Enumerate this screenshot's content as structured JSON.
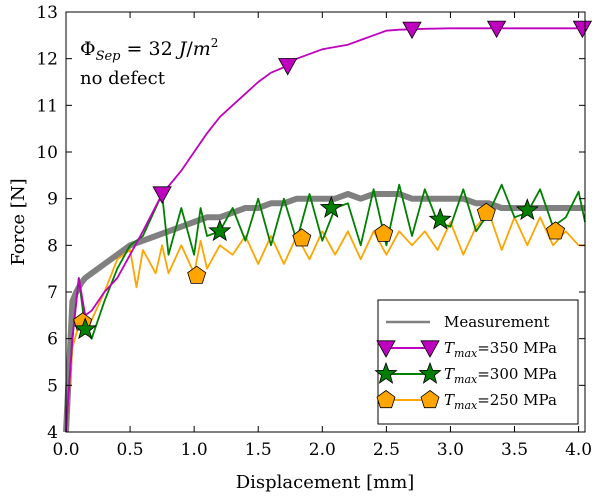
{
  "chart_data": {
    "type": "line",
    "xlabel": "Displacement [mm]",
    "ylabel": "Force [N]",
    "xlim": [
      0.0,
      4.05
    ],
    "ylim": [
      4,
      13
    ],
    "xticks": [
      "0.0",
      "0.5",
      "1.0",
      "1.5",
      "2.0",
      "2.5",
      "3.0",
      "3.5",
      "4.0"
    ],
    "yticks": [
      "4",
      "5",
      "6",
      "7",
      "8",
      "9",
      "10",
      "11",
      "12",
      "13"
    ],
    "grid": false,
    "legend_position": "bottom-right",
    "annotation": {
      "symbol": "Φ",
      "subscript": "Sep",
      "value_text": " = 32 ",
      "unit_main": "J",
      "unit_sep": "/",
      "unit_base": "m",
      "unit_exp": "2",
      "line2": "no defect"
    },
    "series": [
      {
        "name": "Measurement",
        "color": "#808080",
        "marker": "none",
        "x": [
          0.0,
          0.05,
          0.08,
          0.1,
          0.12,
          0.15,
          0.2,
          0.25,
          0.3,
          0.35,
          0.4,
          0.5,
          0.6,
          0.7,
          0.8,
          0.9,
          1.0,
          1.1,
          1.2,
          1.3,
          1.4,
          1.5,
          1.6,
          1.7,
          1.8,
          1.9,
          2.0,
          2.1,
          2.2,
          2.3,
          2.4,
          2.5,
          2.6,
          2.7,
          2.8,
          2.9,
          3.0,
          3.1,
          3.2,
          3.3,
          3.4,
          3.5,
          3.6,
          3.7,
          3.8,
          3.9,
          4.0,
          4.05
        ],
        "y": [
          4.0,
          6.8,
          7.0,
          7.1,
          7.2,
          7.3,
          7.4,
          7.5,
          7.6,
          7.7,
          7.8,
          8.0,
          8.1,
          8.2,
          8.3,
          8.4,
          8.5,
          8.6,
          8.6,
          8.7,
          8.8,
          8.8,
          8.9,
          8.9,
          9.0,
          9.0,
          9.0,
          9.0,
          9.1,
          9.0,
          9.1,
          9.1,
          9.1,
          9.0,
          9.0,
          9.0,
          9.0,
          9.0,
          8.9,
          8.9,
          8.8,
          8.8,
          8.8,
          8.8,
          8.8,
          8.8,
          8.8,
          8.8
        ]
      },
      {
        "name": "T_max=350 MPa",
        "legend_main": "T",
        "legend_sub": "max",
        "legend_rest": "=350 MPa",
        "color": "#bf00bf",
        "marker": "triangle-down",
        "x": [
          0.0,
          0.05,
          0.1,
          0.15,
          0.2,
          0.3,
          0.4,
          0.5,
          0.6,
          0.75,
          0.9,
          1.0,
          1.1,
          1.2,
          1.3,
          1.4,
          1.5,
          1.6,
          1.73,
          1.8,
          2.0,
          2.2,
          2.3,
          2.4,
          2.5,
          2.6,
          2.7,
          2.8,
          3.0,
          3.2,
          3.36,
          3.5,
          3.7,
          3.9,
          4.05
        ],
        "y": [
          4.0,
          6.0,
          7.3,
          6.5,
          6.6,
          7.0,
          7.3,
          7.8,
          8.3,
          9.1,
          9.6,
          10.0,
          10.4,
          10.75,
          11.0,
          11.25,
          11.5,
          11.7,
          11.85,
          12.0,
          12.2,
          12.3,
          12.4,
          12.5,
          12.6,
          12.62,
          12.63,
          12.64,
          12.65,
          12.65,
          12.65,
          12.65,
          12.65,
          12.65,
          12.65
        ],
        "markers_x": [
          0.75,
          1.73,
          2.7,
          3.36,
          4.03
        ],
        "markers_y": [
          9.1,
          11.85,
          12.63,
          12.65,
          12.65
        ]
      },
      {
        "name": "T_max=300 MPa",
        "legend_main": "T",
        "legend_sub": "max",
        "legend_rest": "=300 MPa",
        "color": "#007f00",
        "marker": "star",
        "x": [
          0.0,
          0.05,
          0.1,
          0.15,
          0.2,
          0.3,
          0.4,
          0.5,
          0.6,
          0.75,
          0.8,
          0.9,
          1.0,
          1.05,
          1.1,
          1.2,
          1.3,
          1.4,
          1.5,
          1.6,
          1.7,
          1.8,
          1.9,
          2.0,
          2.1,
          2.2,
          2.3,
          2.4,
          2.5,
          2.6,
          2.7,
          2.8,
          2.9,
          3.0,
          3.1,
          3.2,
          3.3,
          3.4,
          3.5,
          3.6,
          3.7,
          3.8,
          3.9,
          4.0,
          4.05
        ],
        "y": [
          4.0,
          6.0,
          7.3,
          6.2,
          6.0,
          6.8,
          7.5,
          8.0,
          8.2,
          9.1,
          7.8,
          8.8,
          7.8,
          8.8,
          8.2,
          8.3,
          8.8,
          8.1,
          9.0,
          8.0,
          9.0,
          8.1,
          9.1,
          8.1,
          8.8,
          8.9,
          8.0,
          9.2,
          8.0,
          9.3,
          8.2,
          9.2,
          8.5,
          8.4,
          9.2,
          8.3,
          8.7,
          9.3,
          8.6,
          8.7,
          9.2,
          8.4,
          8.6,
          9.15,
          8.5
        ],
        "markers_x": [
          0.15,
          1.2,
          2.07,
          2.92,
          3.6
        ],
        "markers_y": [
          6.2,
          8.3,
          8.8,
          8.55,
          8.75
        ]
      },
      {
        "name": "T_max=250 MPa",
        "legend_main": "T",
        "legend_sub": "max",
        "legend_rest": "=250 MPa",
        "color": "#ffa500",
        "marker": "pentagon",
        "x": [
          0.0,
          0.05,
          0.1,
          0.15,
          0.2,
          0.3,
          0.4,
          0.5,
          0.55,
          0.6,
          0.7,
          0.75,
          0.8,
          0.9,
          1.0,
          1.05,
          1.1,
          1.2,
          1.3,
          1.4,
          1.5,
          1.6,
          1.7,
          1.8,
          1.9,
          2.0,
          2.1,
          2.2,
          2.3,
          2.4,
          2.5,
          2.6,
          2.7,
          2.8,
          2.9,
          3.0,
          3.1,
          3.2,
          3.3,
          3.4,
          3.5,
          3.6,
          3.7,
          3.8,
          3.9,
          4.0,
          4.05
        ],
        "y": [
          4.0,
          5.8,
          6.3,
          6.1,
          6.4,
          7.0,
          7.7,
          7.9,
          7.1,
          7.9,
          7.4,
          8.0,
          7.4,
          8.0,
          7.4,
          8.1,
          7.5,
          8.0,
          7.8,
          8.2,
          7.6,
          8.2,
          7.6,
          8.2,
          7.7,
          8.3,
          7.8,
          8.3,
          7.7,
          8.3,
          7.8,
          8.3,
          8.0,
          8.3,
          7.9,
          8.5,
          7.8,
          8.4,
          8.7,
          7.9,
          8.6,
          8.0,
          8.6,
          8.0,
          8.3,
          8.0,
          8.0
        ],
        "markers_x": [
          0.13,
          1.02,
          1.84,
          2.48,
          3.28,
          3.82
        ],
        "markers_y": [
          6.35,
          7.35,
          8.15,
          8.25,
          8.7,
          8.3
        ]
      }
    ]
  }
}
